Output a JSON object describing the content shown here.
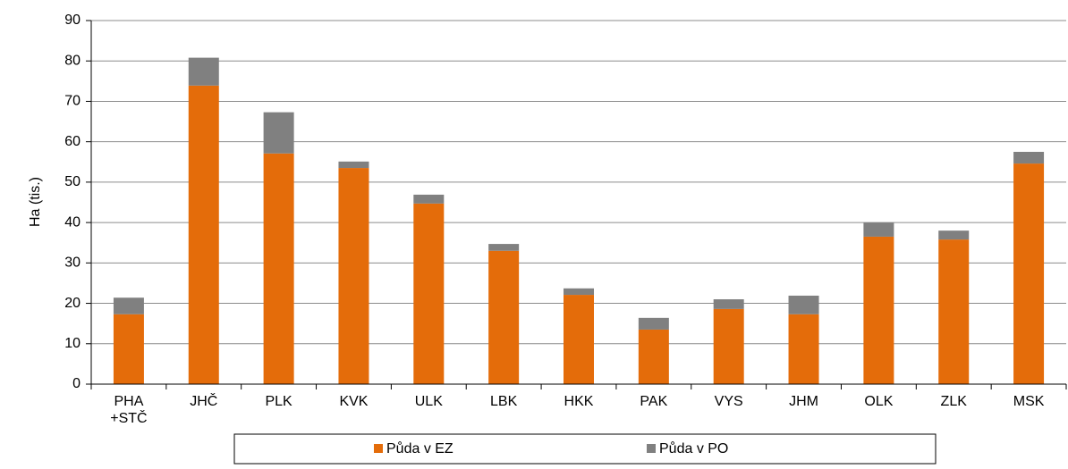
{
  "chart_data": {
    "type": "stacked_bar",
    "y_label": "Ha (tis.)",
    "categories": [
      "PHA\n+STČ",
      "JHČ",
      "PLK",
      "KVK",
      "ULK",
      "LBK",
      "HKK",
      "PAK",
      "VYS",
      "JHM",
      "OLK",
      "ZLK",
      "MSK"
    ],
    "series": [
      {
        "name": "Půda v EZ",
        "color": "#e46c0a",
        "values": [
          17.3,
          73.9,
          57.1,
          53.5,
          44.7,
          33.0,
          22.1,
          13.5,
          18.6,
          17.3,
          36.5,
          35.8,
          54.6
        ]
      },
      {
        "name": "Půda v PO",
        "color": "#808080",
        "values": [
          4.1,
          6.9,
          10.2,
          1.6,
          2.2,
          1.7,
          1.6,
          2.9,
          2.4,
          4.6,
          3.5,
          2.2,
          2.9
        ]
      }
    ],
    "ylim": [
      0,
      90
    ],
    "yticks": [
      0,
      10,
      20,
      30,
      40,
      50,
      60,
      70,
      80,
      90
    ],
    "grid": true,
    "legend": "bottom"
  }
}
